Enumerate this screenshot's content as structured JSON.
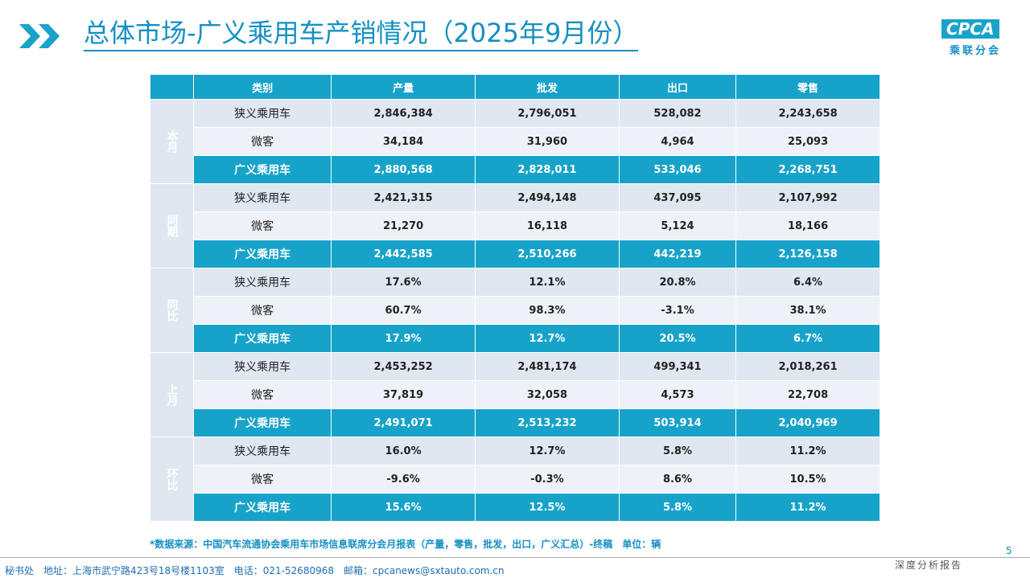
{
  "header": {
    "title": "总体市场-广义乘用车产销情况（2025年9月份）",
    "logo": "CPCA",
    "logo_sub": "乘联分会"
  },
  "table": {
    "columns": [
      "类别",
      "产量",
      "批发",
      "出口",
      "零售"
    ],
    "groups": [
      {
        "label": "本月",
        "rows": [
          [
            "狭义乘用车",
            "2,846,384",
            "2,796,051",
            "528,082",
            "2,243,658"
          ],
          [
            "微客",
            "34,184",
            "31,960",
            "4,964",
            "25,093"
          ],
          [
            "广义乘用车",
            "2,880,568",
            "2,828,011",
            "533,046",
            "2,268,751"
          ]
        ]
      },
      {
        "label": "同期",
        "rows": [
          [
            "狭义乘用车",
            "2,421,315",
            "2,494,148",
            "437,095",
            "2,107,992"
          ],
          [
            "微客",
            "21,270",
            "16,118",
            "5,124",
            "18,166"
          ],
          [
            "广义乘用车",
            "2,442,585",
            "2,510,266",
            "442,219",
            "2,126,158"
          ]
        ]
      },
      {
        "label": "同比",
        "rows": [
          [
            "狭义乘用车",
            "17.6%",
            "12.1%",
            "20.8%",
            "6.4%"
          ],
          [
            "微客",
            "60.7%",
            "98.3%",
            "-3.1%",
            "38.1%"
          ],
          [
            "广义乘用车",
            "17.9%",
            "12.7%",
            "20.5%",
            "6.7%"
          ]
        ]
      },
      {
        "label": "上月",
        "rows": [
          [
            "狭义乘用车",
            "2,453,252",
            "2,481,174",
            "499,341",
            "2,018,261"
          ],
          [
            "微客",
            "37,819",
            "32,058",
            "4,573",
            "22,708"
          ],
          [
            "广义乘用车",
            "2,491,071",
            "2,513,232",
            "503,914",
            "2,040,969"
          ]
        ]
      },
      {
        "label": "环比",
        "rows": [
          [
            "狭义乘用车",
            "16.0%",
            "12.7%",
            "5.8%",
            "11.2%"
          ],
          [
            "微客",
            "-9.6%",
            "-0.3%",
            "8.6%",
            "10.5%"
          ],
          [
            "广义乘用车",
            "15.6%",
            "12.5%",
            "5.8%",
            "11.2%"
          ]
        ]
      }
    ]
  },
  "footnote": "*数据来源：中国汽车流通协会乘用车市场信息联席分会月报表（产量，零售，批发，出口，广义汇总）-终稿　单位：辆",
  "footer": {
    "contact": "秘书处　地址：上海市武宁路423号18号楼1103室　电话：021-52680968　邮箱：cpcanews@sxtauto.com.cn",
    "page": "5",
    "tag": "深度分析报告"
  }
}
